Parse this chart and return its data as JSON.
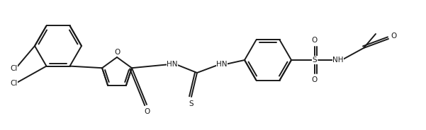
{
  "bg_color": "#ffffff",
  "line_color": "#1a1a2e",
  "line_width": 1.4,
  "font_size": 7.5,
  "figsize": [
    6.01,
    1.84
  ],
  "dpi": 100,
  "atoms": {
    "Cl1_label": "Cl",
    "Cl2_label": "Cl",
    "O_furan": "O",
    "O_carbonyl": "O",
    "HN1": "HN",
    "S_thio": "S",
    "HN2": "HN",
    "S_sulf": "S",
    "O_sulf1": "O",
    "O_sulf2": "O",
    "NH_sulf": "NH",
    "O_acetyl": "O"
  },
  "colors": {
    "bond": "#1a1a1a",
    "text": "#1a1a1a"
  }
}
